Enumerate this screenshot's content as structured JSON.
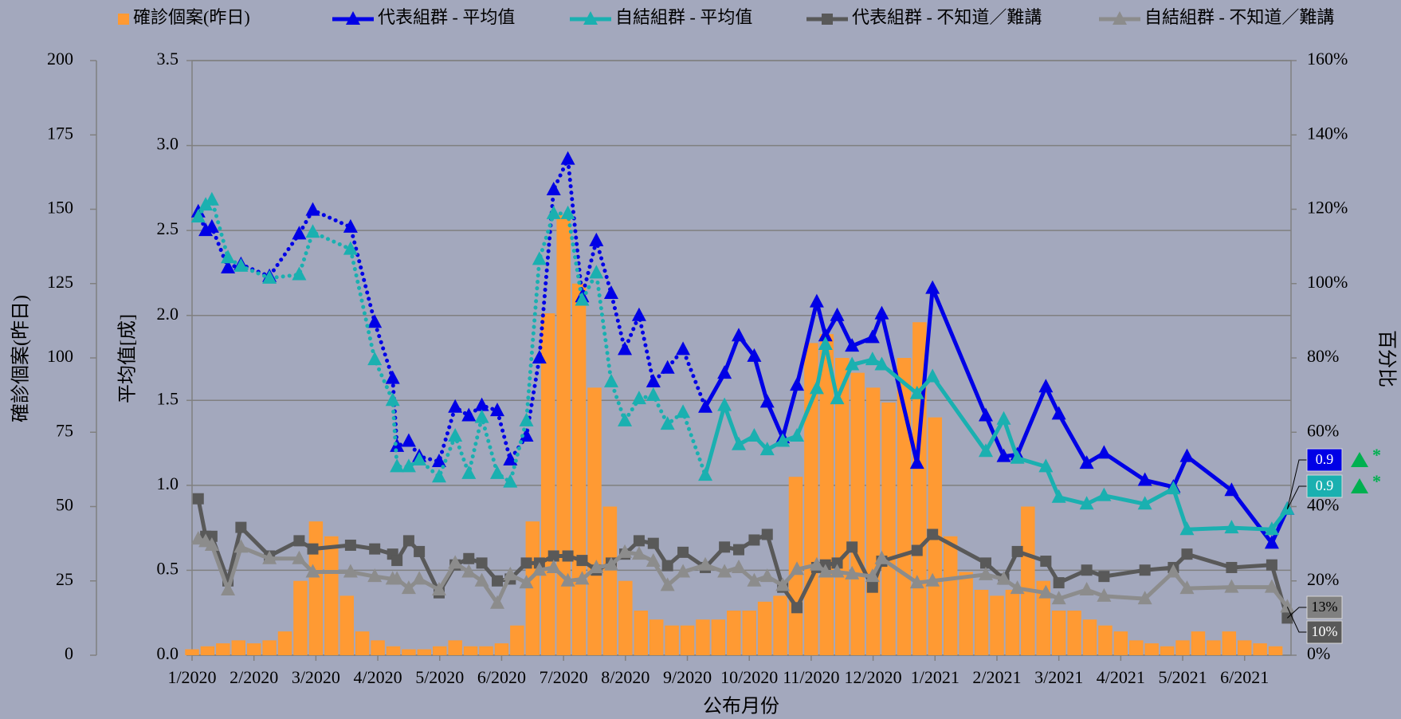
{
  "chart_data": {
    "type": "combo",
    "xlabel": "公布月份",
    "ylabel": "確診個案(昨日)",
    "y2label": "平均值[成]",
    "y3label": "百分比",
    "xlim": [
      0,
      17.75
    ],
    "xticks": [
      {
        "value": 0,
        "label": "1/2020"
      },
      {
        "value": 1,
        "label": "2/2020"
      },
      {
        "value": 2,
        "label": "3/2020"
      },
      {
        "value": 3,
        "label": "4/2020"
      },
      {
        "value": 4,
        "label": "5/2020"
      },
      {
        "value": 5,
        "label": "6/2020"
      },
      {
        "value": 6,
        "label": "7/2020"
      },
      {
        "value": 7,
        "label": "8/2020"
      },
      {
        "value": 8,
        "label": "9/2020"
      },
      {
        "value": 9,
        "label": "10/2020"
      },
      {
        "value": 10,
        "label": "11/2020"
      },
      {
        "value": 11,
        "label": "12/2020"
      },
      {
        "value": 12,
        "label": "1/2021"
      },
      {
        "value": 13,
        "label": "2/2021"
      },
      {
        "value": 14,
        "label": "3/2021"
      },
      {
        "value": 15,
        "label": "4/2021"
      },
      {
        "value": 16,
        "label": "5/2021"
      },
      {
        "value": 17,
        "label": "6/2021"
      }
    ],
    "ylim": [
      0,
      200
    ],
    "yticks": [
      0,
      25,
      50,
      75,
      100,
      125,
      150,
      175,
      200
    ],
    "y2lim": [
      0,
      3.5
    ],
    "y2ticks": [
      {
        "value": 0,
        "label": "0.0"
      },
      0.5,
      {
        "value": 1,
        "label": "1.0"
      },
      1.5,
      {
        "value": 2,
        "label": "2.0"
      },
      2.5,
      {
        "value": 3,
        "label": "3.0"
      },
      3.5
    ],
    "y3lim": [
      0,
      160
    ],
    "y3ticks": [
      {
        "value": 0,
        "label": "0%"
      },
      {
        "value": 20,
        "label": "20%"
      },
      {
        "value": 40,
        "label": "40%"
      },
      {
        "value": 60,
        "label": "60%"
      },
      {
        "value": 80,
        "label": "80%"
      },
      {
        "value": 100,
        "label": "100%"
      },
      {
        "value": 120,
        "label": "120%"
      },
      {
        "value": 140,
        "label": "140%"
      },
      {
        "value": 160,
        "label": "160%"
      }
    ],
    "grid": "y2",
    "series": [
      {
        "name": "確診個案(昨日)",
        "type": "bar",
        "axis": "y",
        "color": "#ff9a33",
        "x": [
          0,
          0.25,
          0.5,
          0.75,
          1,
          1.25,
          1.5,
          1.75,
          2,
          2.25,
          2.5,
          2.75,
          3,
          3.25,
          3.5,
          3.75,
          4,
          4.25,
          4.5,
          4.75,
          5,
          5.25,
          5.5,
          5.75,
          6,
          6.25,
          6.5,
          6.75,
          7,
          7.25,
          7.5,
          7.75,
          8,
          8.25,
          8.5,
          8.75,
          9,
          9.25,
          9.5,
          9.75,
          10,
          10.25,
          10.5,
          10.75,
          11,
          11.25,
          11.5,
          11.75,
          12,
          12.25,
          12.5,
          12.75,
          13,
          13.25,
          13.5,
          13.75,
          14,
          14.25,
          14.5,
          14.75,
          15,
          15.25,
          15.5,
          15.75,
          16,
          16.25,
          16.5,
          16.75,
          17,
          17.25,
          17.5
        ],
        "values": [
          2,
          3,
          4,
          5,
          4,
          5,
          8,
          25,
          45,
          40,
          20,
          8,
          5,
          3,
          2,
          2,
          3,
          5,
          3,
          3,
          4,
          10,
          45,
          115,
          148,
          125,
          90,
          50,
          25,
          15,
          12,
          10,
          10,
          12,
          12,
          15,
          15,
          18,
          20,
          60,
          105,
          108,
          100,
          95,
          90,
          85,
          100,
          112,
          80,
          40,
          28,
          22,
          20,
          22,
          50,
          25,
          15,
          15,
          12,
          10,
          8,
          5,
          4,
          3,
          5,
          8,
          5,
          8,
          5,
          4,
          3
        ]
      },
      {
        "name": "代表組群 - 平均值",
        "type": "line",
        "axis": "y2",
        "color": "#0000e6",
        "marker": "triangle",
        "dotted_until": 8.29,
        "x": [
          0.1,
          0.22,
          0.32,
          0.58,
          0.79,
          1.25,
          1.73,
          1.95,
          2.56,
          2.95,
          3.24,
          3.31,
          3.5,
          3.67,
          3.99,
          4.25,
          4.47,
          4.68,
          4.93,
          5.14,
          5.4,
          5.61,
          5.84,
          6.07,
          6.3,
          6.53,
          6.77,
          6.99,
          7.22,
          7.45,
          7.68,
          7.93,
          8.29,
          8.6,
          8.83,
          9.08,
          9.29,
          9.54,
          9.77,
          10.09,
          10.23,
          10.42,
          10.66,
          10.99,
          11.14,
          11.71,
          11.96,
          12.82,
          13.11,
          13.33,
          13.79,
          14,
          14.45,
          14.73,
          15.39,
          15.85,
          16.07,
          16.79,
          17.44,
          17.69
        ],
        "values": [
          2.61,
          2.5,
          2.52,
          2.28,
          2.3,
          2.23,
          2.48,
          2.62,
          2.52,
          1.96,
          1.63,
          1.23,
          1.26,
          1.17,
          1.14,
          1.46,
          1.41,
          1.47,
          1.44,
          1.15,
          1.29,
          1.75,
          2.74,
          2.92,
          2.11,
          2.44,
          2.13,
          1.8,
          2.0,
          1.61,
          1.69,
          1.8,
          1.46,
          1.66,
          1.88,
          1.76,
          1.49,
          1.28,
          1.59,
          2.08,
          1.88,
          2.0,
          1.82,
          1.87,
          2.01,
          1.13,
          2.16,
          1.41,
          1.17,
          1.18,
          1.58,
          1.42,
          1.13,
          1.19,
          1.03,
          0.99,
          1.17,
          0.97,
          0.66,
          0.86
        ]
      },
      {
        "name": "自結組群 - 平均值",
        "type": "line",
        "axis": "y2",
        "color": "#1ab0b0",
        "marker": "triangle",
        "dotted_until": 8.29,
        "x": [
          0.1,
          0.22,
          0.32,
          0.58,
          0.79,
          1.25,
          1.73,
          1.95,
          2.56,
          2.95,
          3.24,
          3.31,
          3.5,
          3.67,
          3.99,
          4.25,
          4.47,
          4.68,
          4.93,
          5.14,
          5.4,
          5.61,
          5.84,
          6.07,
          6.3,
          6.53,
          6.77,
          6.99,
          7.22,
          7.45,
          7.68,
          7.93,
          8.29,
          8.6,
          8.83,
          9.08,
          9.29,
          9.54,
          9.77,
          10.09,
          10.23,
          10.42,
          10.66,
          10.99,
          11.14,
          11.71,
          11.96,
          12.82,
          13.11,
          13.33,
          13.79,
          14,
          14.45,
          14.73,
          15.39,
          15.85,
          16.07,
          16.79,
          17.44,
          17.69
        ],
        "values": [
          2.58,
          2.65,
          2.68,
          2.34,
          2.29,
          2.22,
          2.24,
          2.49,
          2.39,
          1.74,
          1.5,
          1.11,
          1.11,
          1.15,
          1.05,
          1.29,
          1.07,
          1.4,
          1.07,
          1.02,
          1.38,
          2.33,
          2.6,
          2.6,
          2.09,
          2.25,
          1.61,
          1.38,
          1.51,
          1.53,
          1.36,
          1.43,
          1.06,
          1.47,
          1.24,
          1.29,
          1.21,
          1.26,
          1.29,
          1.57,
          1.83,
          1.51,
          1.71,
          1.74,
          1.71,
          1.54,
          1.64,
          1.2,
          1.39,
          1.16,
          1.11,
          0.93,
          0.89,
          0.94,
          0.89,
          0.98,
          0.74,
          0.75,
          0.74,
          0.86
        ]
      },
      {
        "name": "代表組群 - 不知道／難講",
        "type": "line",
        "axis": "y3",
        "color": "#595959",
        "marker": "square",
        "x": [
          0.1,
          0.22,
          0.32,
          0.58,
          0.79,
          1.25,
          1.73,
          1.95,
          2.56,
          2.95,
          3.24,
          3.31,
          3.5,
          3.67,
          3.99,
          4.25,
          4.47,
          4.68,
          4.93,
          5.14,
          5.4,
          5.61,
          5.84,
          6.07,
          6.3,
          6.53,
          6.77,
          6.99,
          7.22,
          7.45,
          7.68,
          7.93,
          8.29,
          8.6,
          8.83,
          9.08,
          9.29,
          9.54,
          9.77,
          10.09,
          10.23,
          10.42,
          10.66,
          10.99,
          11.14,
          11.71,
          11.96,
          12.82,
          13.11,
          13.33,
          13.79,
          14,
          14.45,
          14.73,
          15.39,
          15.85,
          16.07,
          16.79,
          17.44,
          17.69
        ],
        "values": [
          42.1,
          32,
          32,
          20,
          34.4,
          26.7,
          30.8,
          28.6,
          29.6,
          28.6,
          27.2,
          25.5,
          30.8,
          27.9,
          16.8,
          24.3,
          26,
          24.8,
          20,
          20.5,
          24.8,
          24.8,
          26.7,
          26.7,
          25.5,
          22.9,
          24.8,
          27.2,
          30.8,
          30.1,
          24.1,
          27.7,
          23.6,
          29.1,
          28.4,
          31,
          32.5,
          18.3,
          12.8,
          23.6,
          24.3,
          24.8,
          29.1,
          18.3,
          25.3,
          28.2,
          32.5,
          24.8,
          20.5,
          27.9,
          25.3,
          19.5,
          22.9,
          21.2,
          22.9,
          23.6,
          27.2,
          23.6,
          24.3,
          10
        ]
      },
      {
        "name": "自結組群 - 不知道／難講",
        "type": "line",
        "axis": "y3",
        "color": "#8c8c8c",
        "marker": "triangle",
        "x": [
          0.1,
          0.22,
          0.32,
          0.58,
          0.79,
          1.25,
          1.73,
          1.95,
          2.56,
          2.95,
          3.24,
          3.31,
          3.5,
          3.67,
          3.99,
          4.25,
          4.47,
          4.68,
          4.93,
          5.14,
          5.4,
          5.61,
          5.84,
          6.07,
          6.3,
          6.53,
          6.77,
          6.99,
          7.22,
          7.45,
          7.68,
          7.93,
          8.29,
          8.6,
          8.83,
          9.08,
          9.29,
          9.54,
          9.77,
          10.09,
          10.23,
          10.42,
          10.66,
          10.99,
          11.14,
          11.71,
          11.96,
          12.82,
          13.11,
          13.33,
          13.79,
          14,
          14.45,
          14.73,
          15.39,
          15.85,
          16.07,
          16.79,
          17.44,
          17.69
        ],
        "values": [
          31.3,
          30.6,
          29.6,
          17.6,
          29.1,
          26,
          26,
          22.4,
          22.4,
          21.2,
          20.5,
          20.5,
          18,
          20.5,
          17.6,
          24.8,
          22.4,
          20,
          14,
          21.7,
          19.5,
          22.9,
          23.6,
          20,
          20.5,
          23.6,
          24.3,
          27.7,
          27.2,
          25.3,
          18.8,
          22.4,
          24.3,
          22.4,
          23.6,
          20,
          21.2,
          18.8,
          23.1,
          24.3,
          22.4,
          22.4,
          21.9,
          21.2,
          26,
          19.5,
          20,
          21.7,
          20.5,
          18,
          16.8,
          15.2,
          17.6,
          15.9,
          15.2,
          22.4,
          18,
          18.3,
          18.3,
          13
        ]
      }
    ],
    "end_labels": [
      {
        "label": "0.9",
        "color": "#0000e6",
        "note": "*"
      },
      {
        "label": "0.9",
        "color": "#1ab0b0",
        "note": "*"
      },
      {
        "label": "13%",
        "color": "#808080"
      },
      {
        "label": "10%",
        "color": "#595959"
      }
    ]
  }
}
